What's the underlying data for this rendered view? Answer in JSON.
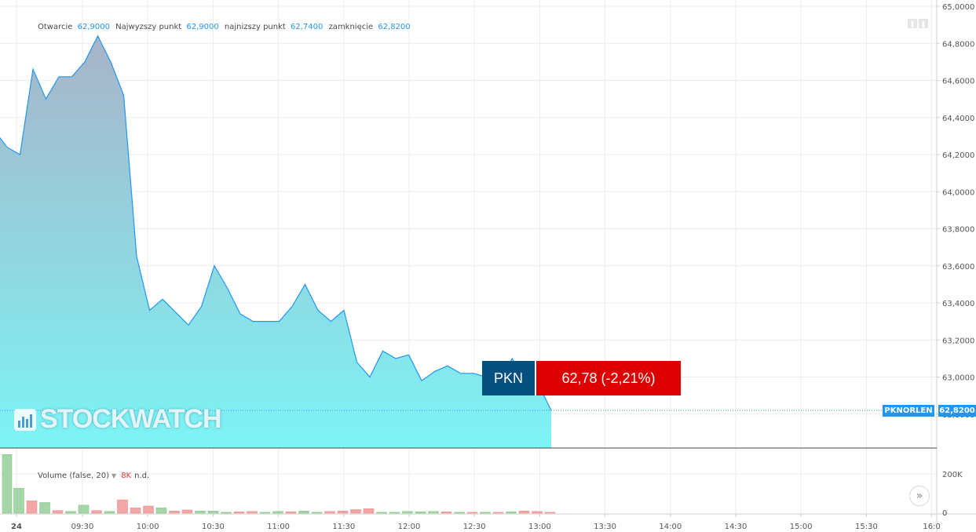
{
  "legend": {
    "open_label": "Otwarcie",
    "open_value": "62,9000",
    "high_label": "Najwyzszy punkt",
    "high_value": "62,9000",
    "low_label": "najnizszy punkt",
    "low_value": "62,7400",
    "close_label": "zamknięcie",
    "close_value": "62,8200"
  },
  "volume_legend": {
    "label": "Volume (false, 20)",
    "value": "8K",
    "extra": "n.d."
  },
  "ticker": {
    "symbol": "PKN",
    "change": "62,78 (-2,21%)"
  },
  "price_tag": {
    "name": "PKNORLEN",
    "price": "62,8200"
  },
  "watermark": {
    "text": "STOCKWATCH"
  },
  "colors": {
    "line": "#2196f3",
    "area_top": "#a8b4c8",
    "area_bottom": "#7cf4f6",
    "vol_up": "#a5d6a7",
    "vol_down": "#f4a6a6",
    "ticker_symbol_bg": "#02507f",
    "ticker_change_bg": "#dd0000"
  },
  "chart_data": {
    "type": "area",
    "x_tick_labels": [
      "24",
      "09:30",
      "10:00",
      "10:30",
      "11:00",
      "11:30",
      "12:00",
      "12:30",
      "13:00",
      "13:30",
      "14:00",
      "14:30",
      "15:00",
      "15:30",
      "16:0"
    ],
    "y_tick_labels": [
      "65,0000",
      "64,8000",
      "64,6000",
      "64,4000",
      "64,2000",
      "64,0000",
      "63,8000",
      "63,6000",
      "63,4000",
      "63,2000",
      "63,0000",
      "62,8000"
    ],
    "ylim": [
      62.8,
      65.0
    ],
    "volume_axis_labels": [
      "200K",
      "0"
    ],
    "volume_max": 340,
    "price": {
      "x": [
        "09:00",
        "09:05",
        "09:10",
        "09:15",
        "09:20",
        "09:25",
        "09:30",
        "09:35",
        "09:40",
        "09:45",
        "09:50",
        "09:55",
        "10:00",
        "10:05",
        "10:10",
        "10:15",
        "10:20",
        "10:25",
        "10:30",
        "10:35",
        "10:40",
        "10:45",
        "10:50",
        "10:55",
        "11:00",
        "11:05",
        "11:10",
        "11:15",
        "11:20",
        "11:25",
        "11:30",
        "11:35",
        "11:40",
        "11:45",
        "11:50",
        "11:55",
        "12:00",
        "12:05",
        "12:10",
        "12:15",
        "12:20",
        "12:25",
        "12:30"
      ],
      "y": [
        64.24,
        64.2,
        64.66,
        64.5,
        64.62,
        64.62,
        64.7,
        64.84,
        64.7,
        64.52,
        63.65,
        63.36,
        63.42,
        63.35,
        63.28,
        63.38,
        63.6,
        63.48,
        63.34,
        63.3,
        63.3,
        63.3,
        63.38,
        63.5,
        63.36,
        63.3,
        63.36,
        63.08,
        63.0,
        63.14,
        63.1,
        63.12,
        62.98,
        63.03,
        63.06,
        63.02,
        63.02,
        63.0,
        63.0,
        63.1,
        62.96,
        62.96,
        62.82
      ]
    },
    "volume": [
      {
        "v": 330,
        "up": true
      },
      {
        "v": 140,
        "up": true
      },
      {
        "v": 70,
        "up": false
      },
      {
        "v": 60,
        "up": true
      },
      {
        "v": 15,
        "up": false
      },
      {
        "v": 10,
        "up": true
      },
      {
        "v": 45,
        "up": true
      },
      {
        "v": 15,
        "up": false
      },
      {
        "v": 10,
        "up": true
      },
      {
        "v": 75,
        "up": false
      },
      {
        "v": 30,
        "up": false
      },
      {
        "v": 40,
        "up": false
      },
      {
        "v": 30,
        "up": true
      },
      {
        "v": 12,
        "up": false
      },
      {
        "v": 18,
        "up": false
      },
      {
        "v": 12,
        "up": true
      },
      {
        "v": 12,
        "up": true
      },
      {
        "v": 5,
        "up": true
      },
      {
        "v": 8,
        "up": false
      },
      {
        "v": 10,
        "up": false
      },
      {
        "v": 5,
        "up": true
      },
      {
        "v": 10,
        "up": true
      },
      {
        "v": 8,
        "up": false
      },
      {
        "v": 12,
        "up": true
      },
      {
        "v": 5,
        "up": true
      },
      {
        "v": 10,
        "up": false
      },
      {
        "v": 12,
        "up": false
      },
      {
        "v": 20,
        "up": false
      },
      {
        "v": 25,
        "up": false
      },
      {
        "v": 5,
        "up": true
      },
      {
        "v": 5,
        "up": true
      },
      {
        "v": 10,
        "up": true
      },
      {
        "v": 8,
        "up": true
      },
      {
        "v": 10,
        "up": true
      },
      {
        "v": 8,
        "up": false
      },
      {
        "v": 5,
        "up": true
      },
      {
        "v": 5,
        "up": false
      },
      {
        "v": 5,
        "up": true
      },
      {
        "v": 5,
        "up": false
      },
      {
        "v": 8,
        "up": true
      },
      {
        "v": 12,
        "up": false
      },
      {
        "v": 10,
        "up": false
      },
      {
        "v": 5,
        "up": false
      }
    ]
  }
}
